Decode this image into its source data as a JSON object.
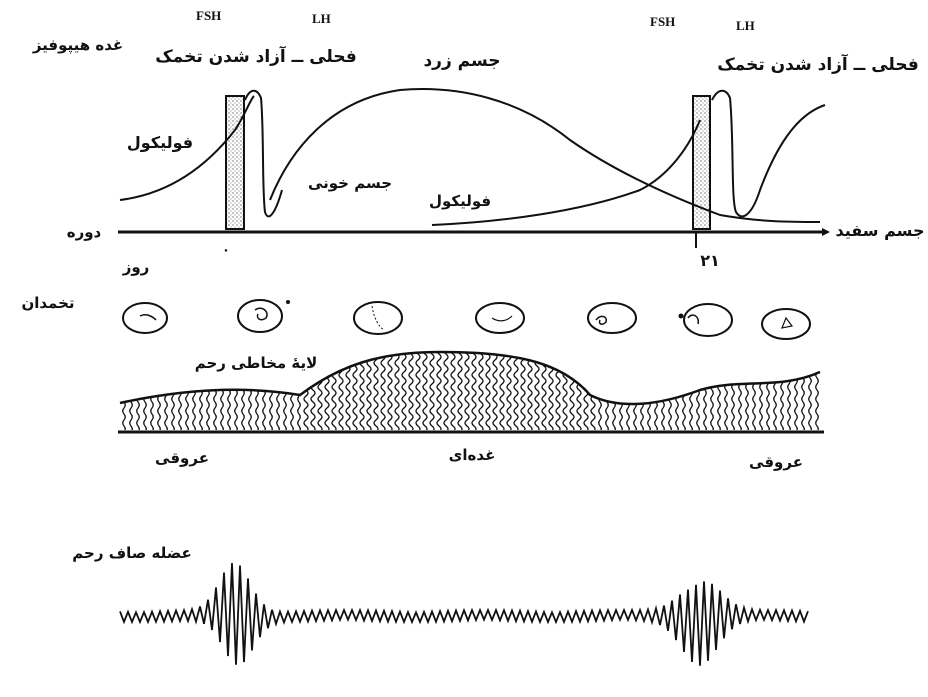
{
  "hormones": {
    "label_pituitary": "غده هیپوفیز",
    "fsh_1": "FSH",
    "lh_1": "LH",
    "fsh_2": "FSH",
    "lh_2": "LH",
    "phase_ovulation_1": "فحلی ــ آزاد شدن تخمک",
    "phase_ovulation_2": "فحلی ــ آزاد شدن تخمک",
    "corpus_luteum": "جسم زرد",
    "follicle_1": "فولیکول",
    "follicle_2": "فولیکول",
    "corpus_hemorrhagicum": "جسم خونی",
    "corpus_albicans": "جسم سفید"
  },
  "timeline": {
    "cycle_label": "دوره",
    "day_label": "روز",
    "day_start": "۰",
    "day_end": "۲۱"
  },
  "ovary": {
    "label": "تخمدان",
    "stage_count_shown": 7
  },
  "uterus": {
    "endometrium_label": "لایهٔ مخاطی رحم",
    "vascular_1": "عروقی",
    "glandular": "غده‌ای",
    "vascular_2": "عروقی",
    "smooth_muscle_label": "عضله صاف رحم"
  },
  "colors": {
    "ink": "#111111",
    "background": "#ffffff"
  }
}
